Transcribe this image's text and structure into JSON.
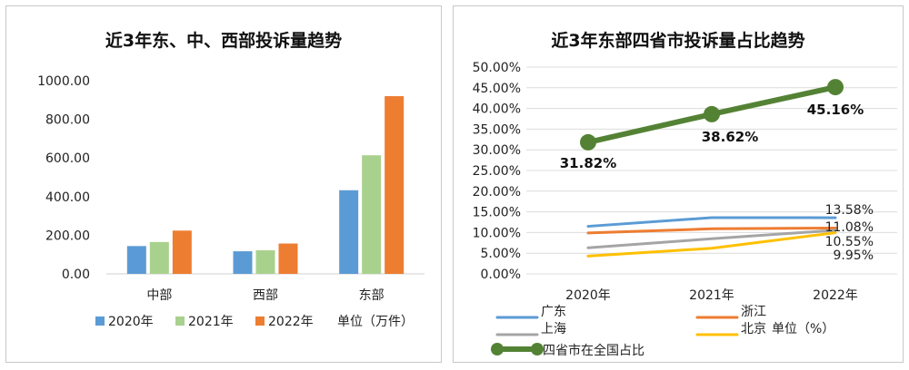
{
  "chart_data": [
    {
      "type": "bar",
      "title": "近3年东、中、西部投诉量趋势",
      "categories": [
        "中部",
        "西部",
        "东部"
      ],
      "series": [
        {
          "name": "2020年",
          "values": [
            144,
            117,
            433
          ],
          "color": "#5b9bd5"
        },
        {
          "name": "2021年",
          "values": [
            165,
            122,
            614
          ],
          "color": "#a9d18e"
        },
        {
          "name": "2022年",
          "values": [
            224,
            157,
            920
          ],
          "color": "#ed7d31"
        }
      ],
      "unit_note": "单位（万件）",
      "yticks": [
        "0.00",
        "200.00",
        "400.00",
        "600.00",
        "800.00",
        "1000.00"
      ],
      "ylim": [
        0,
        1000
      ],
      "grid": false,
      "legend_position": "bottom"
    },
    {
      "type": "line",
      "title": "近3年东部四省市投诉量占比趋势",
      "categories": [
        "2020年",
        "2021年",
        "2022年"
      ],
      "series": [
        {
          "name": "广东",
          "values": [
            11.5,
            13.6,
            13.58
          ],
          "color": "#5b9bd5",
          "width": 3
        },
        {
          "name": "浙江",
          "values": [
            9.9,
            10.9,
            11.08
          ],
          "color": "#ed7d31",
          "width": 3
        },
        {
          "name": "上海",
          "values": [
            6.3,
            8.5,
            10.55
          ],
          "color": "#a5a5a5",
          "width": 3
        },
        {
          "name": "北京",
          "values": [
            4.3,
            6.2,
            9.95
          ],
          "color": "#ffc000",
          "width": 3
        },
        {
          "name": "四省市在全国占比",
          "values": [
            31.82,
            38.62,
            45.16
          ],
          "color": "#548235",
          "width": 6,
          "markers": true
        }
      ],
      "data_labels": {
        "main": [
          "31.82%",
          "38.62%",
          "45.16%"
        ],
        "end": [
          "13.58%",
          "11.08%",
          "10.55%",
          "9.95%"
        ]
      },
      "unit_note": "单位（%）",
      "yticks": [
        "0.00%",
        "5.00%",
        "10.00%",
        "15.00%",
        "20.00%",
        "25.00%",
        "30.00%",
        "35.00%",
        "40.00%",
        "45.00%",
        "50.00%"
      ],
      "ylim": [
        0,
        50
      ],
      "grid": true,
      "legend_position": "bottom"
    }
  ]
}
